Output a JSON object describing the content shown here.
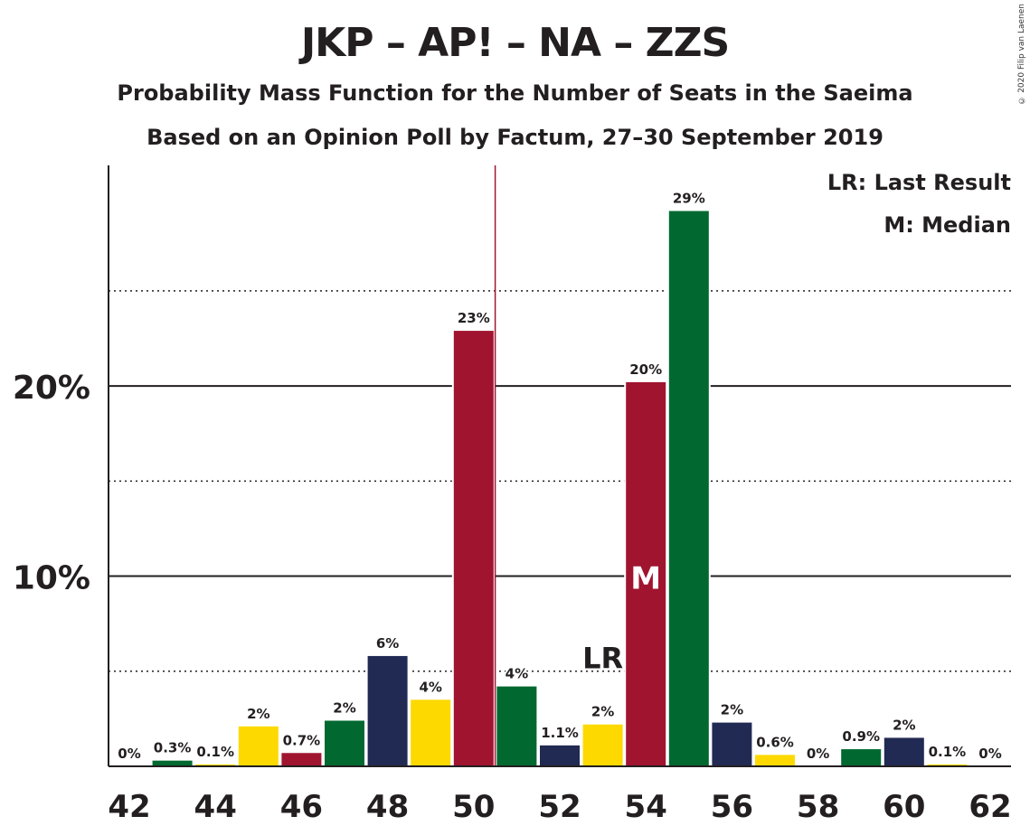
{
  "header": {
    "title": "JKP – AP! – NA – ZZS",
    "subtitle": "Probability Mass Function for the Number of Seats in the Saeima",
    "source": "Based on an Opinion Poll by Factum, 27–30 September 2019",
    "copyright": "© 2020 Filip van Laenen"
  },
  "legend": {
    "last_result": "LR: Last Result",
    "median": "M: Median"
  },
  "colors": {
    "dark_blue": "#212a53",
    "green": "#016930",
    "yellow": "#fdd900",
    "red": "#a01430",
    "axis": "#231f20"
  },
  "chart_data": {
    "type": "bar",
    "x": [
      42,
      43,
      44,
      45,
      46,
      47,
      48,
      49,
      50,
      51,
      52,
      53,
      54,
      55,
      56,
      57,
      58,
      59,
      60,
      61,
      62
    ],
    "values": [
      0,
      0.3,
      0.1,
      2.1,
      0.7,
      2.4,
      5.8,
      3.5,
      22.9,
      4.2,
      1.1,
      2.2,
      20.2,
      29.2,
      2.3,
      0.6,
      0,
      0.9,
      1.5,
      0.1,
      0
    ],
    "value_labels": [
      "0%",
      "0.3%",
      "0.1%",
      "2%",
      "0.7%",
      "2%",
      "6%",
      "4%",
      "23%",
      "4%",
      "1.1%",
      "2%",
      "20%",
      "29%",
      "2%",
      "0.6%",
      "0%",
      "0.9%",
      "2%",
      "0.1%",
      "0%"
    ],
    "bar_colors": [
      "dark_blue",
      "green",
      "yellow",
      "yellow",
      "red",
      "green",
      "dark_blue",
      "yellow",
      "red",
      "green",
      "dark_blue",
      "yellow",
      "red",
      "green",
      "dark_blue",
      "yellow",
      "red",
      "green",
      "dark_blue",
      "yellow",
      "red"
    ],
    "x_tick_labels": [
      "42",
      "44",
      "46",
      "48",
      "50",
      "52",
      "54",
      "56",
      "58",
      "60",
      "62"
    ],
    "y_tick_labels": [
      "10%",
      "20%"
    ],
    "y_ticks": [
      10,
      20
    ],
    "y_minor_ticks": [
      5,
      15,
      25
    ],
    "ylim": [
      0,
      31.6
    ],
    "median_seat": 54,
    "median_label": "M",
    "last_result_seat": 53,
    "last_result_label": "LR",
    "majority_line_x": 50.5,
    "grid": true
  }
}
